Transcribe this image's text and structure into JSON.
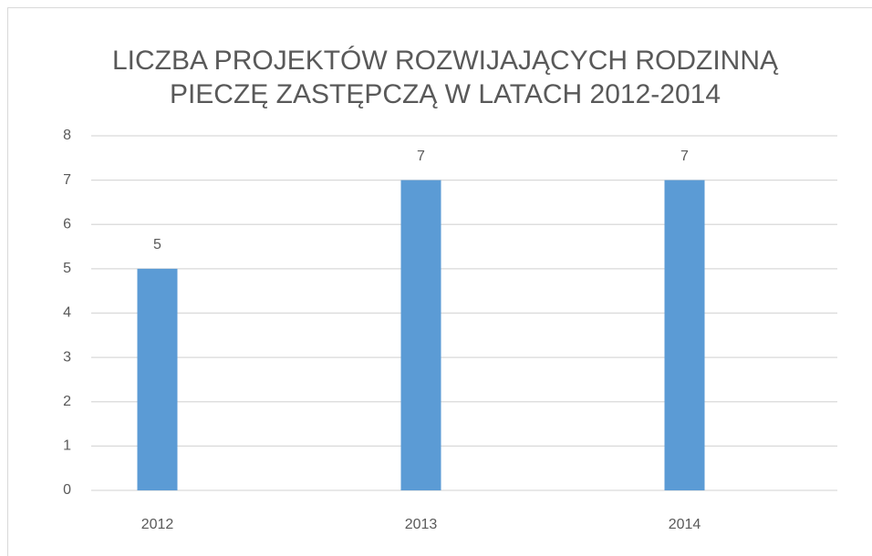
{
  "chart_data": {
    "type": "bar",
    "title": [
      "LICZBA PROJEKTÓW ROZWIJAJĄCYCH RODZINNĄ",
      "PIECZĘ ZASTĘPCZĄ W LATACH 2012-2014"
    ],
    "categories": [
      "2012",
      "2013",
      "2014"
    ],
    "values": [
      5,
      7,
      7
    ],
    "color": "#5b9bd5",
    "ylim": [
      0,
      8
    ],
    "yticks": [
      0,
      1,
      2,
      3,
      4,
      5,
      6,
      7,
      8
    ],
    "grid": true,
    "data_labels": true
  }
}
